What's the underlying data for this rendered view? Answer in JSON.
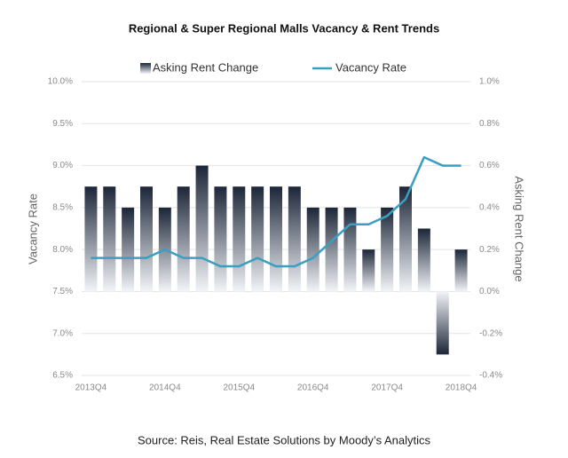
{
  "chart_data": {
    "type": "bar_line",
    "title": "Regional & Super Regional Malls Vacancy & Rent Trends",
    "source": "Source: Reis, Real Estate Solutions by Moody’s Analytics",
    "y_label": "Vacancy Rate",
    "y2_label": "Asking Rent Change",
    "categories": [
      "2013Q4",
      null,
      null,
      null,
      "2014Q4",
      null,
      null,
      null,
      "2015Q4",
      null,
      null,
      null,
      "2016Q4",
      null,
      null,
      null,
      "2017Q4",
      null,
      null,
      null,
      "2018Q4"
    ],
    "series": [
      {
        "name": "Asking Rent Change",
        "type": "bar",
        "axis": "y2",
        "color": "#1c2638",
        "values": [
          0.5,
          0.5,
          0.4,
          0.5,
          0.4,
          0.5,
          0.6,
          0.5,
          0.5,
          0.5,
          0.5,
          0.5,
          0.4,
          0.4,
          0.4,
          0.2,
          0.4,
          0.5,
          0.3,
          -0.3,
          0.2
        ]
      },
      {
        "name": "Vacancy Rate",
        "type": "line",
        "axis": "y",
        "color": "#3a9fc0",
        "values": [
          7.9,
          7.9,
          7.9,
          7.9,
          8.0,
          7.9,
          7.9,
          7.8,
          7.8,
          7.9,
          7.8,
          7.8,
          7.9,
          8.1,
          8.3,
          8.3,
          8.4,
          8.6,
          9.1,
          9.0,
          9.0
        ]
      }
    ],
    "ylim": [
      6.5,
      10.0
    ],
    "yticks": [
      {
        "value": 6.5,
        "label": "6.5%"
      },
      {
        "value": 7.0,
        "label": "7.0%"
      },
      {
        "value": 7.5,
        "label": "7.5%"
      },
      {
        "value": 8.0,
        "label": "8.0%"
      },
      {
        "value": 8.5,
        "label": "8.5%"
      },
      {
        "value": 9.0,
        "label": "9.0%"
      },
      {
        "value": 9.5,
        "label": "9.5%"
      },
      {
        "value": 10.0,
        "label": "10.0%"
      }
    ],
    "y2lim": [
      -0.4,
      1.0
    ],
    "y2ticks": [
      {
        "value": -0.4,
        "label": "-0.4%"
      },
      {
        "value": -0.2,
        "label": "-0.2%"
      },
      {
        "value": 0.0,
        "label": "0.0%"
      },
      {
        "value": 0.2,
        "label": "0.2%"
      },
      {
        "value": 0.4,
        "label": "0.4%"
      },
      {
        "value": 0.6,
        "label": "0.6%"
      },
      {
        "value": 0.8,
        "label": "0.8%"
      },
      {
        "value": 1.0,
        "label": "1.0%"
      }
    ],
    "grid": true,
    "legend": "top"
  }
}
